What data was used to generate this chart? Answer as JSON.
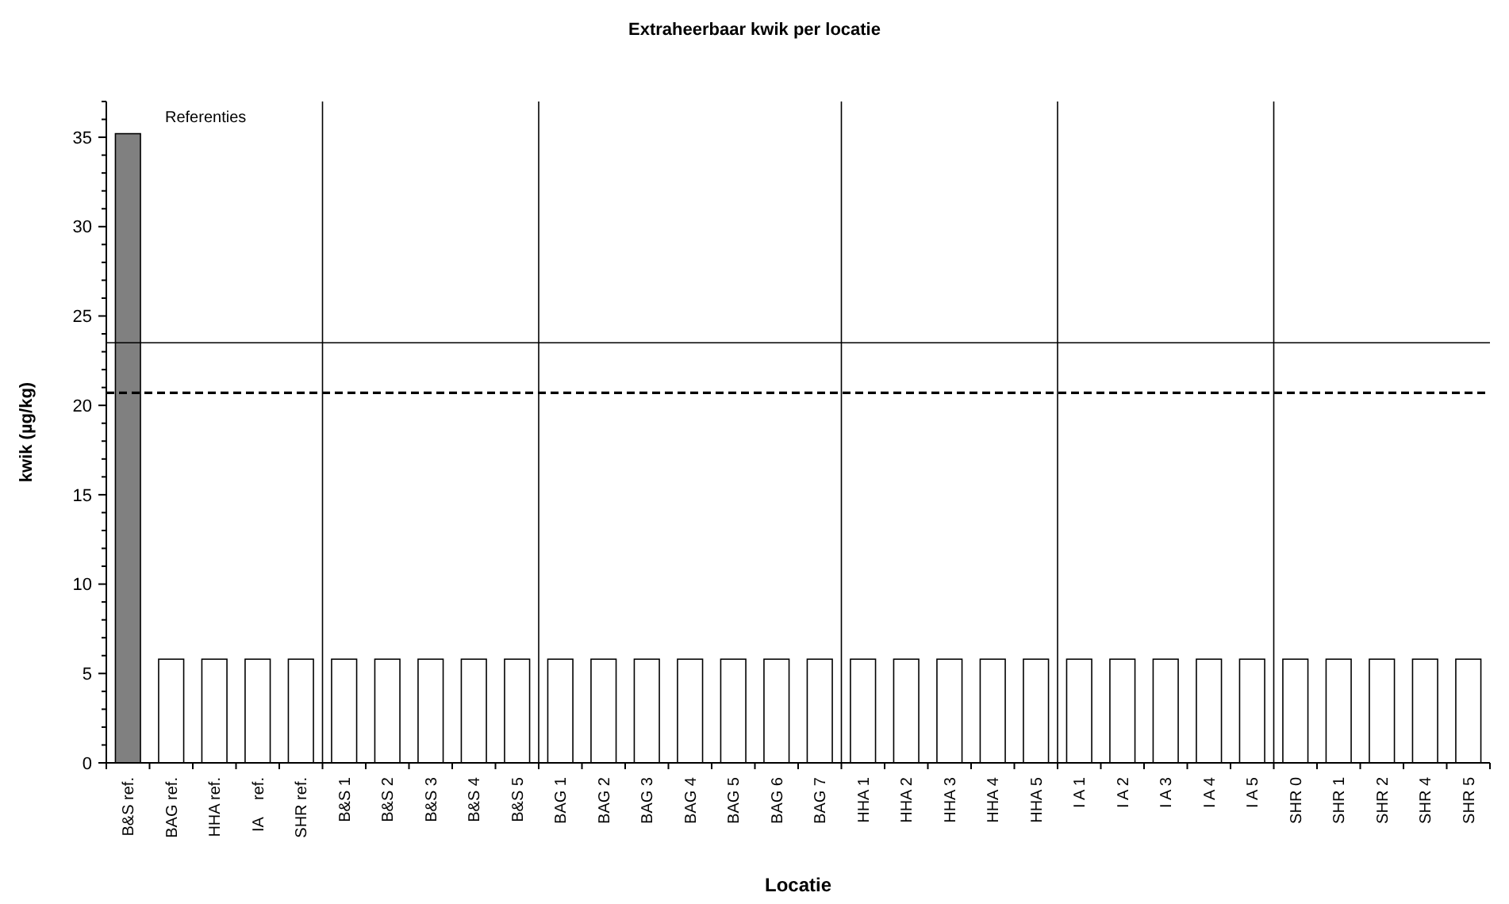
{
  "chart_data": {
    "type": "bar",
    "title": "Extraheerbaar kwik per locatie",
    "xlabel": "Locatie",
    "ylabel": "kwik (µg/kg)",
    "categories": [
      "B&S ref.",
      "BAG ref.",
      "HHA ref.",
      "IA    ref.",
      "SHR ref.",
      "B&S 1",
      "B&S 2",
      "B&S 3",
      "B&S 4",
      "B&S 5",
      "BAG 1",
      "BAG 2",
      "BAG 3",
      "BAG 4",
      "BAG 5",
      "BAG 6",
      "BAG 7",
      "HHA 1",
      "HHA 2",
      "HHA 3",
      "HHA 4",
      "HHA 5",
      "I A 1",
      "I A 2",
      "I A 3",
      "I A 4",
      "I A 5",
      "SHR 0",
      "SHR 1",
      "SHR 2",
      "SHR 4",
      "SHR 5"
    ],
    "values": [
      35.2,
      5.8,
      5.8,
      5.8,
      5.8,
      5.8,
      5.8,
      5.8,
      5.8,
      5.8,
      5.8,
      5.8,
      5.8,
      5.8,
      5.8,
      5.8,
      5.8,
      5.8,
      5.8,
      5.8,
      5.8,
      5.8,
      5.8,
      5.8,
      5.8,
      5.8,
      5.8,
      5.8,
      5.8,
      5.8,
      5.8,
      5.8
    ],
    "colors": [
      "#808080",
      "#ffffff",
      "#ffffff",
      "#ffffff",
      "#ffffff",
      "#ffffff",
      "#ffffff",
      "#ffffff",
      "#ffffff",
      "#ffffff",
      "#ffffff",
      "#ffffff",
      "#ffffff",
      "#ffffff",
      "#ffffff",
      "#ffffff",
      "#ffffff",
      "#ffffff",
      "#ffffff",
      "#ffffff",
      "#ffffff",
      "#ffffff",
      "#ffffff",
      "#ffffff",
      "#ffffff",
      "#ffffff",
      "#ffffff",
      "#ffffff",
      "#ffffff",
      "#ffffff",
      "#ffffff",
      "#ffffff"
    ],
    "ylim": [
      0,
      37
    ],
    "yticks": [
      0,
      {
        "value": 1,
        "label": null
      },
      {
        "value": 2,
        "label": null
      },
      {
        "value": 3,
        "label": null
      },
      {
        "value": 4,
        "label": null
      },
      5,
      {
        "value": 6,
        "label": null
      },
      {
        "value": 7,
        "label": null
      },
      {
        "value": 8,
        "label": null
      },
      {
        "value": 9,
        "label": null
      },
      10,
      {
        "value": 11,
        "label": null
      },
      {
        "value": 12,
        "label": null
      },
      {
        "value": 13,
        "label": null
      },
      {
        "value": 14,
        "label": null
      },
      15,
      {
        "value": 16,
        "label": null
      },
      {
        "value": 17,
        "label": null
      },
      {
        "value": 18,
        "label": null
      },
      {
        "value": 19,
        "label": null
      },
      20,
      {
        "value": 21,
        "label": null
      },
      {
        "value": 22,
        "label": null
      },
      {
        "value": 23,
        "label": null
      },
      {
        "value": 24,
        "label": null
      },
      25,
      {
        "value": 26,
        "label": null
      },
      {
        "value": 27,
        "label": null
      },
      {
        "value": 28,
        "label": null
      },
      {
        "value": 29,
        "label": null
      },
      30,
      {
        "value": 31,
        "label": null
      },
      {
        "value": 32,
        "label": null
      },
      {
        "value": 33,
        "label": null
      },
      {
        "value": 34,
        "label": null
      },
      35,
      {
        "value": 36,
        "label": null
      },
      {
        "value": 37,
        "label": null
      }
    ],
    "ref_lines": [
      {
        "axis": "y",
        "value": 23.5,
        "color": "#000000",
        "line_style": "solid"
      },
      {
        "axis": "y",
        "value": 20.7,
        "color": "#000000",
        "line_style": "dashed"
      }
    ],
    "annotations": [
      "Referenties"
    ],
    "grid": false
  }
}
